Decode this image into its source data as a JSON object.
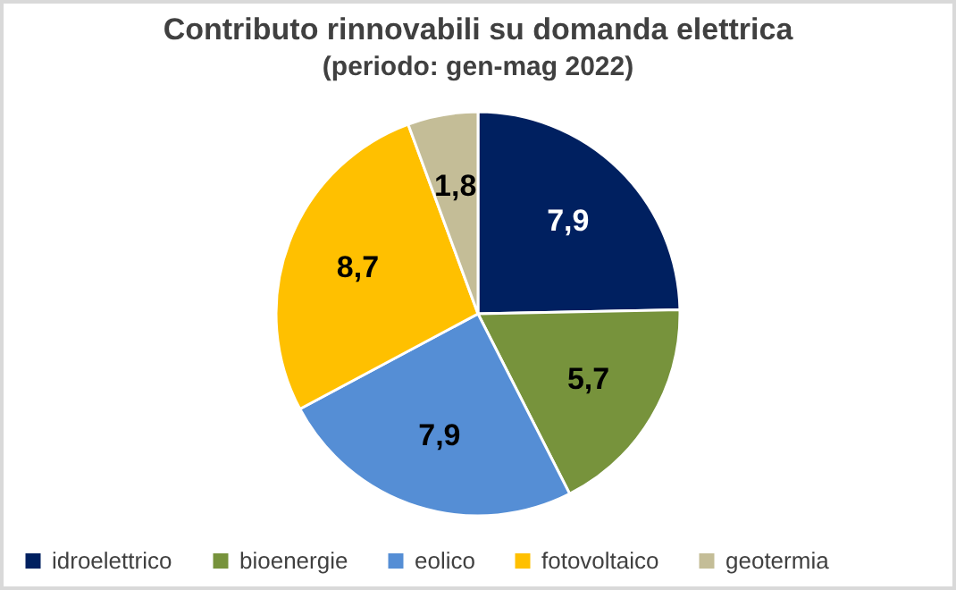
{
  "chart_data": {
    "type": "pie",
    "title": "Contributo rinnovabili su domanda elettrica",
    "subtitle": "(periodo: gen-mag 2022)",
    "categories": [
      "idroelettrico",
      "bioenergie",
      "eolico",
      "fotovoltaico",
      "geotermia"
    ],
    "values": [
      7.9,
      5.7,
      7.9,
      8.7,
      1.8
    ],
    "colors": [
      "#002060",
      "#77933c",
      "#558ed5",
      "#ffc000",
      "#c4bd97"
    ],
    "value_labels": [
      "7,9",
      "5,7",
      "7,9",
      "8,7",
      "1,8"
    ],
    "legend": "bottom"
  }
}
